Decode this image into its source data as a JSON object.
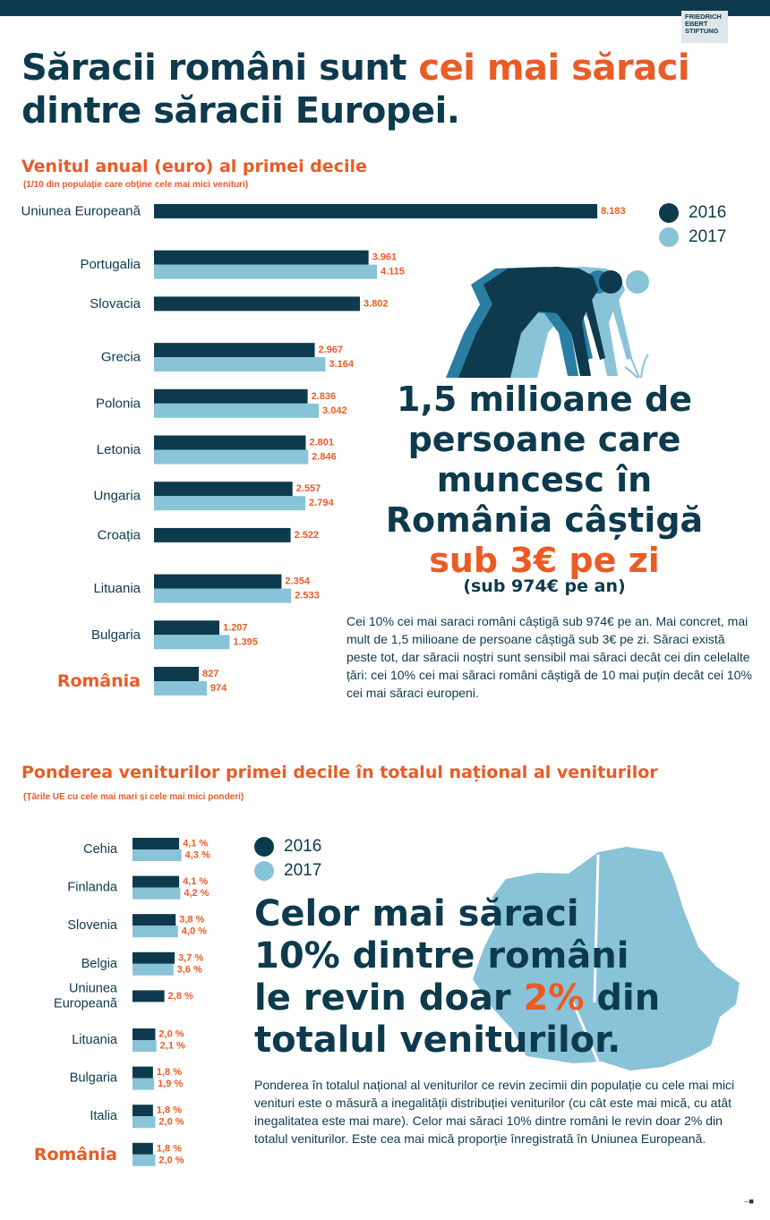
{
  "brand": {
    "logo_lines": [
      "FRIEDRICH",
      "EBERT",
      "STIFTUNG"
    ],
    "colors": {
      "navy": "#0d3a4d",
      "light_blue": "#88c3d8",
      "orange": "#ea5b26"
    }
  },
  "headline": {
    "part1": "Săracii români sunt ",
    "highlight": "cei mai săraci",
    "part2": " dintre săracii Europei."
  },
  "section1": {
    "title": "Venitul anual (euro) al primei decile",
    "subtitle": "(1/10 din populație care obține cele mai mici venituri)"
  },
  "section2": {
    "title": "Ponderea veniturilor primei decile în totalul național al veniturilor",
    "subtitle": "(Țările UE cu cele mai mari și cele mai mici ponderi)"
  },
  "legend": [
    {
      "label": "2016",
      "color": "#0d3a4d"
    },
    {
      "label": "2017",
      "color": "#88c3d8"
    }
  ],
  "chart_data": [
    {
      "type": "bar",
      "orientation": "horizontal",
      "title": "Venitul anual (euro) al primei decile",
      "categories": [
        "Uniunea Europeană",
        "Portugalia",
        "Slovacia",
        "Grecia",
        "Polonia",
        "Letonia",
        "Ungaria",
        "Croația",
        "Lituania",
        "Bulgaria",
        "România"
      ],
      "series": [
        {
          "name": "2016",
          "values": [
            8183,
            3961,
            3802,
            2967,
            2836,
            2801,
            2557,
            2522,
            2354,
            1207,
            827
          ],
          "labels": [
            "8.183",
            "3.961",
            "3.802",
            "2.967",
            "2.836",
            "2.801",
            "2.557",
            "2.522",
            "2.354",
            "1.207",
            "827"
          ]
        },
        {
          "name": "2017",
          "values": [
            null,
            4115,
            null,
            3164,
            3042,
            2846,
            2794,
            null,
            2533,
            1395,
            974
          ],
          "labels": [
            null,
            "4.115",
            null,
            "3.164",
            "3.042",
            "2.846",
            "2.794",
            null,
            "2.533",
            "1.395",
            "974"
          ]
        }
      ],
      "highlight_category": "România",
      "legend": "top-right"
    },
    {
      "type": "bar",
      "orientation": "horizontal",
      "title": "Ponderea veniturilor primei decile în totalul național al veniturilor",
      "categories": [
        "Cehia",
        "Finlanda",
        "Slovenia",
        "Belgia",
        "Uniunea Europeană",
        "Lituania",
        "Bulgaria",
        "Italia",
        "România"
      ],
      "series": [
        {
          "name": "2016",
          "values": [
            4.1,
            4.1,
            3.8,
            3.7,
            2.8,
            2.0,
            1.8,
            1.8,
            1.8
          ],
          "labels": [
            "4,1 %",
            "4,1 %",
            "3,8 %",
            "3,7 %",
            "2,8 %",
            "2,0 %",
            "1,8 %",
            "1,8 %",
            "1,8 %"
          ]
        },
        {
          "name": "2017",
          "values": [
            4.3,
            4.2,
            4.0,
            3.6,
            null,
            2.1,
            1.9,
            2.0,
            2.0
          ],
          "labels": [
            "4,3 %",
            "4,2 %",
            "4,0 %",
            "3,6 %",
            null,
            "2,1 %",
            "1,9 %",
            "2,0 %",
            "2,0 %"
          ]
        }
      ],
      "highlight_category": "România",
      "legend": "top-right"
    }
  ],
  "callout1": {
    "lines": [
      "1,5 milioane de",
      "persoane care",
      "muncesc în",
      "România câștigă"
    ],
    "highlight": "sub 3€ pe zi",
    "sub": "(sub 974€ pe an)",
    "paragraph": "Cei 10% cei mai saraci români câștigă sub 974€ pe an. Mai concret, mai mult de 1,5 milioane de persoane câștigă sub 3€ pe zi. Săraci există peste tot, dar săracii noștri sunt sensibil mai săraci decât cei din celelalte țări: cei 10% cei mai săraci români câștigă de 10 mai puțin decât cei 10% cei mai săraci europeni."
  },
  "callout2": {
    "line1": "Celor mai săraci",
    "line2": "10% dintre români",
    "line3_pre": "le revin doar ",
    "line3_hl": "2%",
    "line3_post": " din",
    "line4": "totalul veniturilor.",
    "paragraph": "Ponderea în totalul național al veniturilor ce revin zecimii din populație cu cele mai mici venituri este o măsură a inegalității distribuției veniturilor (cu cât este mai mică, cu atât inegalitatea este mai mare). Celor mai săraci 10% dintre români le revin doar 2% din totalul veniturilor. Este cea mai mică proporție înregistrată în Uniunea Europeană."
  },
  "page_mark": "–■"
}
